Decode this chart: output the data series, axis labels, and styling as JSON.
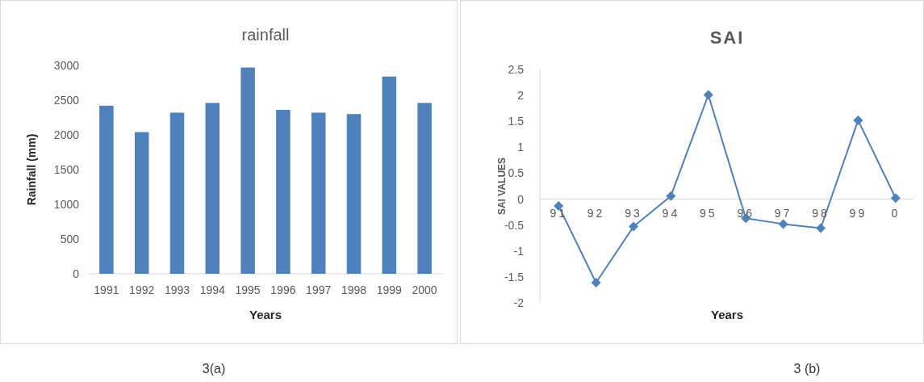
{
  "chart_data": [
    {
      "type": "bar",
      "title": "rainfall",
      "xlabel": "Years",
      "ylabel": "Rainfall (mm)",
      "categories": [
        "1991",
        "1992",
        "1993",
        "1994",
        "1995",
        "1996",
        "1997",
        "1998",
        "1999",
        "2000"
      ],
      "values": [
        2420,
        2040,
        2320,
        2460,
        2970,
        2360,
        2320,
        2300,
        2840,
        2460
      ],
      "color": "#4f81bd",
      "ylim": [
        0,
        3000
      ],
      "yticks": [
        0,
        500,
        1000,
        1500,
        2000,
        2500,
        3000
      ],
      "annotations": [
        "3(a)"
      ]
    },
    {
      "type": "line",
      "title": "SAI",
      "xlabel": "Years",
      "ylabel": "SAI VALUES",
      "categories": [
        "91",
        "92",
        "93",
        "94",
        "95",
        "96",
        "97",
        "98",
        "99",
        "0"
      ],
      "values": [
        -0.13,
        -1.61,
        -0.53,
        0.06,
        2.01,
        -0.37,
        -0.48,
        -0.56,
        1.52,
        0.02
      ],
      "color": "#4f81bd",
      "marker": "diamond",
      "ylim": [
        -2,
        2.5
      ],
      "yticks": [
        -2,
        -1.5,
        -1,
        -0.5,
        0,
        0.5,
        1,
        1.5,
        2,
        2.5
      ],
      "annotations": [
        "3 (b)"
      ]
    }
  ]
}
